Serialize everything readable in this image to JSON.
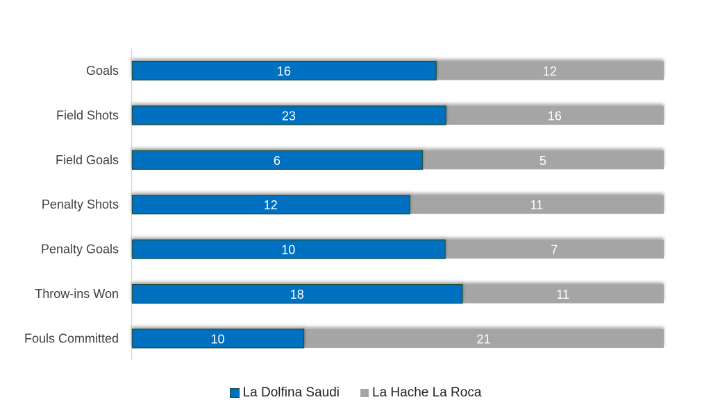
{
  "chart_data": {
    "type": "bar",
    "orientation": "horizontal",
    "stacked": "percent",
    "categories": [
      "Goals",
      "Field Shots",
      "Field Goals",
      "Penalty Shots",
      "Penalty Goals",
      "Throw-ins Won",
      "Fouls Committed"
    ],
    "series": [
      {
        "name": "La Dolfina Saudi",
        "values": [
          16,
          23,
          6,
          12,
          10,
          18,
          10
        ],
        "color": "#0070C0"
      },
      {
        "name": "La Hache La Roca",
        "values": [
          12,
          16,
          5,
          11,
          7,
          11,
          21
        ],
        "color": "#A5A5A5"
      }
    ],
    "legend_position": "bottom",
    "grid": false
  }
}
